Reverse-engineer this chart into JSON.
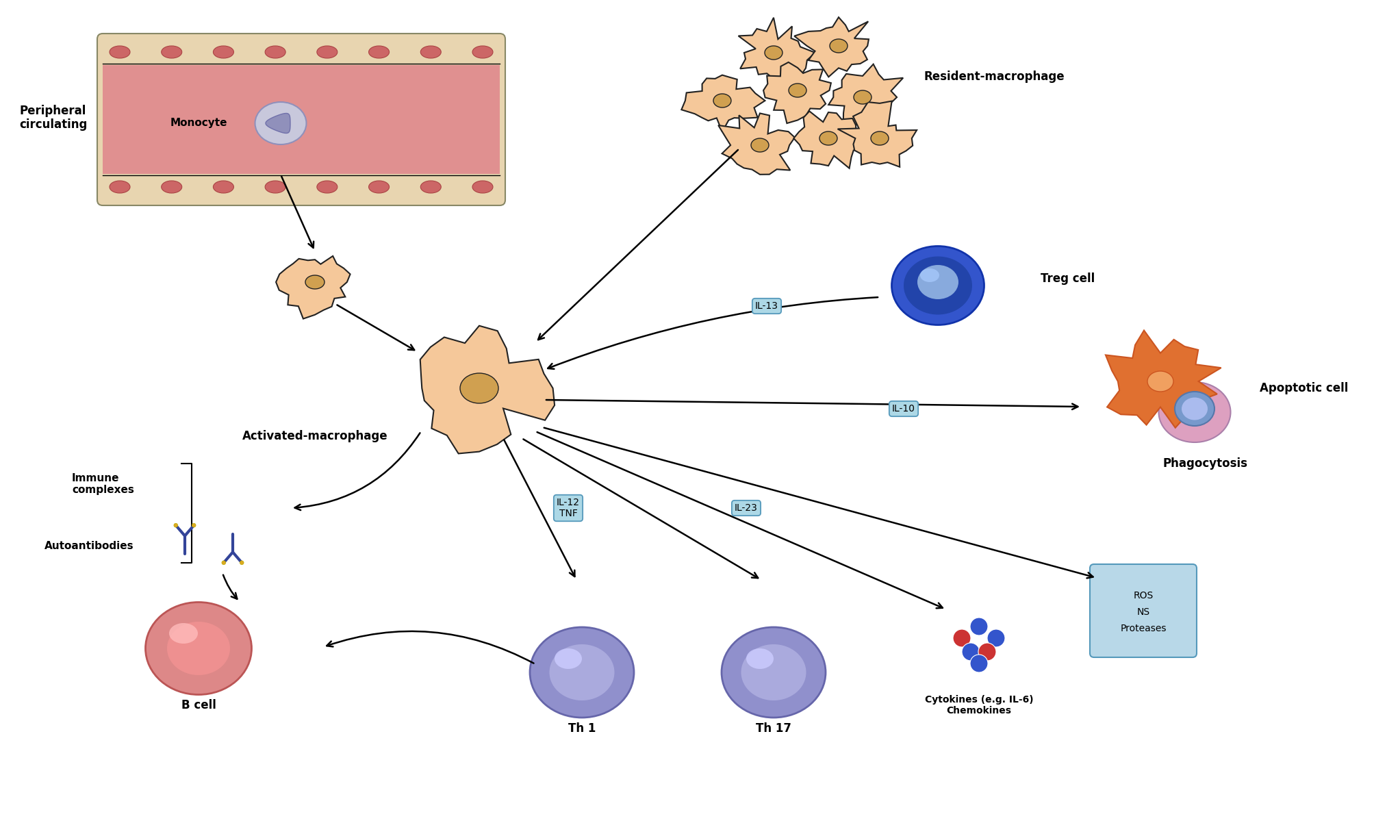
{
  "bg_color": "#ffffff",
  "labels": {
    "peripheral_circulating": "Peripheral\ncirculating",
    "monocyte": "Monocyte",
    "resident_macrophage": "Resident-macrophage",
    "activated_macrophage": "Activated-macrophage",
    "treg_cell": "Treg cell",
    "apoptotic_cell": "Apoptotic cell",
    "phagocytosis": "Phagocytosis",
    "immune_complexes": "Immune\ncomplexes",
    "autoantibodies": "Autoantibodies",
    "b_cell": "B cell",
    "th1": "Th 1",
    "th17": "Th 17",
    "cytokines": "Cytokines (e.g. IL-6)\nChemokines",
    "ros_line1": "ROS",
    "ros_line2": "NS",
    "ros_line3": "Proteases",
    "il13": "IL-13",
    "il10": "IL-10",
    "il12_tnf": "IL-12\nTNF",
    "il23": "IL-23"
  },
  "colors": {
    "bg_color": "#ffffff",
    "macrophage_fill": "#F5C89A",
    "macrophage_edge": "#222222",
    "blood_vessel_wall": "#E8D5B0",
    "blood_vessel_interior": "#E09090",
    "rbc_fill": "#CC6666",
    "rbc_edge": "#AA4444",
    "monocyte_body": "#C8C8DC",
    "monocyte_nucleus": "#9090BB",
    "treg_outer": "#3355CC",
    "treg_mid": "#2244AA",
    "treg_inner": "#88AADD",
    "treg_highlight": "#AACCFF",
    "bcell_outer": "#DD8888",
    "bcell_mid": "#EE9090",
    "bcell_inner": "#FFBBBB",
    "bcell_edge": "#BB5555",
    "th_outer": "#9090CC",
    "th_mid": "#AAAADD",
    "th_highlight": "#CCCCFF",
    "th_edge": "#6666AA",
    "apoptotic_orange": "#E07030",
    "apoptotic_orange_edge": "#CC5520",
    "apoptotic_orange_nuc": "#F0A060",
    "apoptotic_pink": "#DDA0C0",
    "apoptotic_pink_edge": "#AA80AA",
    "apoptotic_blue_outer": "#7799CC",
    "apoptotic_blue_outer_edge": "#5577AA",
    "apoptotic_blue_inner": "#AABBEE",
    "box_fill": "#ADD8E6",
    "box_edge": "#5599BB",
    "antibody_blue": "#334499",
    "antibody_gold": "#DDAA22",
    "cytokine_blue": "#3355CC",
    "cytokine_red": "#CC3333",
    "ros_fill": "#B8D8E8",
    "ros_edge": "#5599BB",
    "vessel_border": "#888866",
    "nuc_fill": "#D0A050",
    "nuc_edge": "#222222"
  }
}
